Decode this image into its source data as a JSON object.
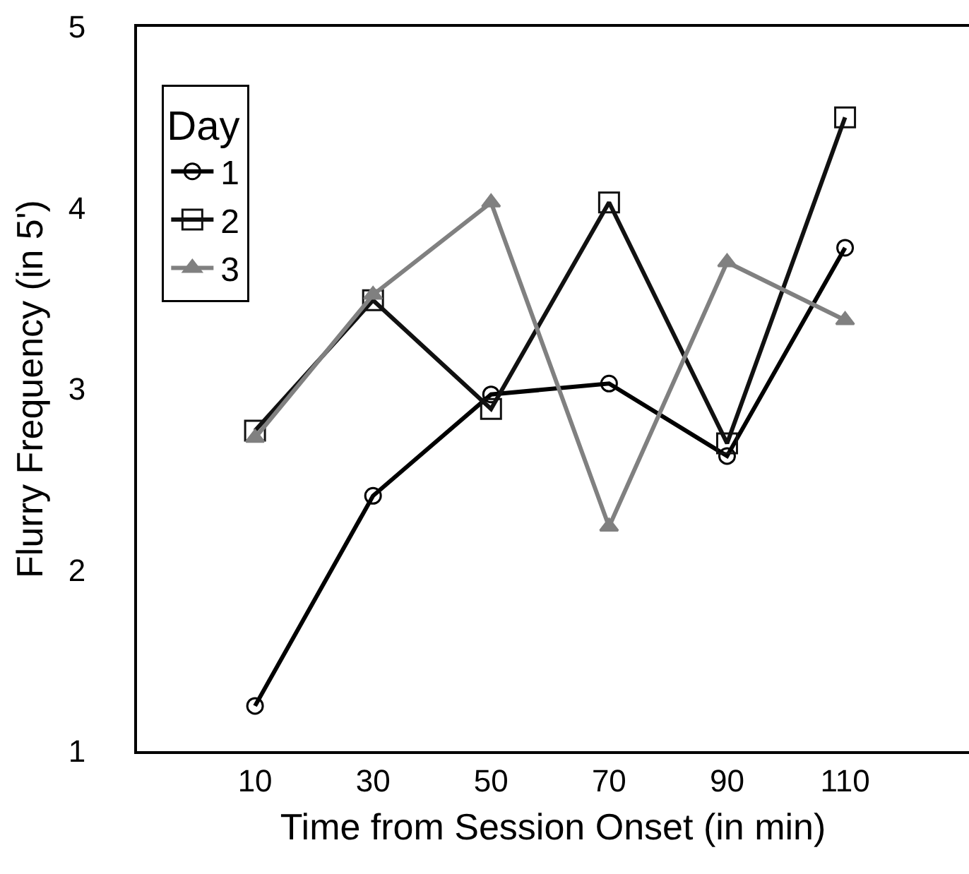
{
  "chart_data": {
    "type": "line",
    "xlabel": "Time from Session Onset (in min)",
    "ylabel": "Flurry Frequency (in 5')",
    "legend_title": "Day",
    "legend": "top left",
    "x": [
      10,
      30,
      50,
      70,
      90,
      110
    ],
    "xlim": [
      -10,
      131
    ],
    "xticks": [
      10,
      30,
      50,
      70,
      90,
      110
    ],
    "ylim": [
      1,
      5
    ],
    "yticks": [
      1,
      2,
      3,
      4,
      5
    ],
    "series": [
      {
        "name": "1",
        "color": "#000000",
        "marker": "circle",
        "values": [
          1.25,
          2.41,
          2.97,
          3.03,
          2.63,
          3.78
        ]
      },
      {
        "name": "2",
        "color": "#111111",
        "marker": "square",
        "values": [
          2.77,
          3.49,
          2.89,
          4.03,
          2.7,
          4.5
        ]
      },
      {
        "name": "3",
        "color": "#808080",
        "marker": "triangle",
        "values": [
          2.73,
          3.52,
          4.03,
          2.24,
          3.7,
          3.38
        ]
      }
    ]
  }
}
